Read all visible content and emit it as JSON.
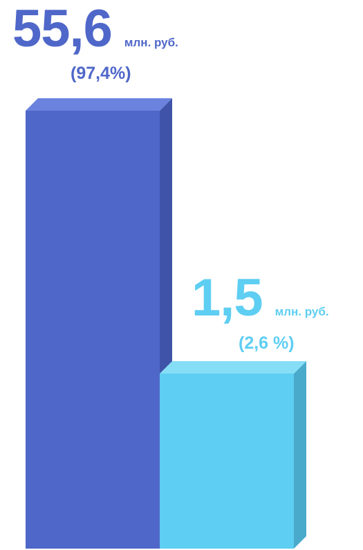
{
  "chart_data": {
    "type": "bar",
    "ylim": [
      0,
      55.6
    ],
    "bars": [
      {
        "value": 55.6,
        "value_label": "55,6",
        "unit": "млн. руб.",
        "percent_label": "(97,4%)",
        "color_front": "#4F67C9",
        "color_top": "#6B83DE",
        "color_side": "#3F53A8"
      },
      {
        "value": 1.5,
        "value_label": "1,5",
        "unit": "млн. руб.",
        "percent_label": "(2,6 %)",
        "color_front": "#5ECEF2",
        "color_top": "#86DDF6",
        "color_side": "#4AAACB"
      }
    ]
  }
}
